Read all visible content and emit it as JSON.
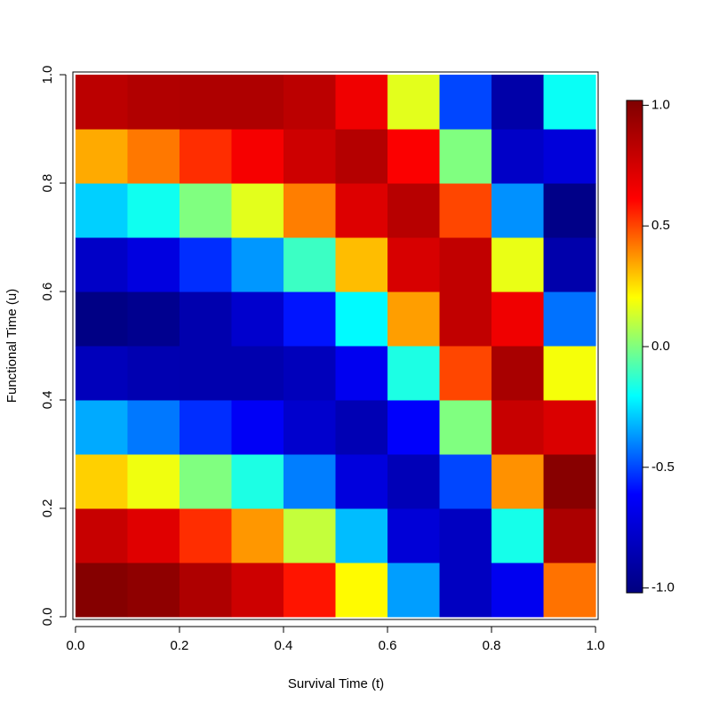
{
  "chart_data": {
    "type": "heatmap",
    "x_label": "Survival Time (t)",
    "y_label": "Functional Time (u)",
    "x": [
      0.05,
      0.15,
      0.25,
      0.35,
      0.45,
      0.55,
      0.65,
      0.75,
      0.85,
      0.95
    ],
    "y": [
      0.05,
      0.15,
      0.25,
      0.35,
      0.45,
      0.55,
      0.65,
      0.75,
      0.85,
      0.95
    ],
    "z": [
      [
        1.0,
        0.97,
        0.87,
        0.77,
        0.58,
        0.21,
        -0.36,
        -0.81,
        -0.66,
        0.43
      ],
      [
        0.79,
        0.71,
        0.54,
        0.37,
        0.11,
        -0.31,
        -0.74,
        -0.81,
        -0.17,
        0.88
      ],
      [
        0.28,
        0.18,
        0.0,
        -0.16,
        -0.41,
        -0.72,
        -0.84,
        -0.5,
        0.38,
        0.99
      ],
      [
        -0.34,
        -0.42,
        -0.54,
        -0.64,
        -0.77,
        -0.85,
        -0.62,
        0.0,
        0.79,
        0.73
      ],
      [
        -0.83,
        -0.86,
        -0.87,
        -0.87,
        -0.83,
        -0.66,
        -0.16,
        0.5,
        0.89,
        0.19
      ],
      [
        -1.0,
        -0.97,
        -0.87,
        -0.77,
        -0.58,
        -0.21,
        0.36,
        0.81,
        0.66,
        -0.43
      ],
      [
        -0.79,
        -0.71,
        -0.54,
        -0.37,
        -0.11,
        0.31,
        0.74,
        0.81,
        0.17,
        -0.88
      ],
      [
        -0.28,
        -0.18,
        0.0,
        0.16,
        0.41,
        0.72,
        0.84,
        0.5,
        -0.38,
        -0.99
      ],
      [
        0.34,
        0.42,
        0.54,
        0.64,
        0.77,
        0.85,
        0.62,
        0.0,
        -0.79,
        -0.73
      ],
      [
        0.83,
        0.86,
        0.87,
        0.87,
        0.83,
        0.66,
        0.16,
        -0.5,
        -0.89,
        -0.19
      ]
    ],
    "colorscale": [
      "#00007f",
      "#0000ff",
      "#00ffff",
      "#ffff00",
      "#ff0000",
      "#7f0000"
    ],
    "zlim": [
      -1.02,
      1.02
    ],
    "zticks": [
      {
        "value": -1.0,
        "label": "-1.0"
      },
      {
        "value": -0.5,
        "label": "-0.5"
      },
      {
        "value": 0.0,
        "label": "0.0"
      },
      {
        "value": 0.5,
        "label": "0.5"
      },
      {
        "value": 1.0,
        "label": "1.0"
      }
    ],
    "xlim": [
      -0.005,
      1.005
    ],
    "ylim": [
      -0.005,
      1.005
    ],
    "xticks": [
      {
        "value": 0,
        "label": "0.0"
      },
      {
        "value": 0.2,
        "label": "0.2"
      },
      {
        "value": 0.4,
        "label": "0.4"
      },
      {
        "value": 0.6,
        "label": "0.6"
      },
      {
        "value": 0.8,
        "label": "0.8"
      },
      {
        "value": 1,
        "label": "1.0"
      }
    ],
    "yticks": [
      {
        "value": 0,
        "label": "0.0"
      },
      {
        "value": 0.2,
        "label": "0.2"
      },
      {
        "value": 0.4,
        "label": "0.4"
      },
      {
        "value": 0.6,
        "label": "0.6"
      },
      {
        "value": 0.8,
        "label": "0.8"
      },
      {
        "value": 1,
        "label": "1.0"
      }
    ]
  }
}
